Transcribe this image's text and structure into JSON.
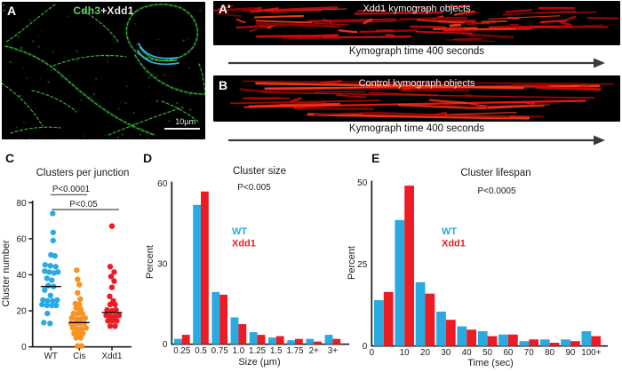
{
  "panels": {
    "a": {
      "label": "A",
      "title_green": "Cdh3",
      "title_rest": "+Xdd1",
      "scale_text": "10µm"
    },
    "a_prime": {
      "label": "A'",
      "title": "Xdd1 kymograph objects",
      "caption": "Kymograph time 400 seconds"
    },
    "b": {
      "label": "B",
      "title": "Control kymograph objects",
      "caption": "Kymograph time 400 seconds"
    }
  },
  "colors": {
    "wt_blue": "#29abe2",
    "cis_orange": "#f7941e",
    "xdd1_red": "#ed1c24",
    "micrograph_green": "#3cc43c",
    "highlight_cyan": "#2fb3ea",
    "kymograph_red": "#e01010",
    "arrow_gray": "#3a3a3a"
  },
  "chart_data": [
    {
      "panel_label": "C",
      "type": "scatter",
      "title": "Clusters per junction",
      "ylabel": "Cluster number",
      "ylim": [
        0,
        80
      ],
      "yticks": [
        0,
        20,
        40,
        60,
        80
      ],
      "categories": [
        "WT",
        "Cis",
        "Xdd1"
      ],
      "significance": [
        {
          "text": "P<0.0001",
          "pair": [
            "WT",
            "Cis"
          ]
        },
        {
          "text": "P<0.05",
          "pair": [
            "WT",
            "Xdd1"
          ]
        }
      ],
      "medians": [
        33.5,
        13.5,
        19
      ],
      "series": [
        {
          "name": "WT",
          "color": "#29abe2",
          "points": [
            [
              2,
              74
            ],
            [
              2.5,
              63.5
            ],
            [
              2.5,
              59
            ],
            [
              0,
              51
            ],
            [
              4.5,
              50.5
            ],
            [
              -6.5,
              45.5
            ],
            [
              -0.5,
              45
            ],
            [
              5.5,
              44.5
            ],
            [
              -7,
              42
            ],
            [
              -2,
              41.5
            ],
            [
              3.5,
              41
            ],
            [
              8,
              41.5
            ],
            [
              -4.5,
              38
            ],
            [
              1,
              37
            ],
            [
              -3,
              34
            ],
            [
              3,
              33.5
            ],
            [
              -7,
              31.5
            ],
            [
              -0.5,
              28.5
            ],
            [
              -9,
              26
            ],
            [
              -4,
              25.5
            ],
            [
              2,
              25.5
            ],
            [
              7,
              26
            ],
            [
              -10,
              23.5
            ],
            [
              -4.5,
              23
            ],
            [
              1,
              23
            ],
            [
              6,
              23
            ],
            [
              -4,
              18.5
            ],
            [
              -8,
              13.5
            ],
            [
              -1,
              13
            ]
          ]
        },
        {
          "name": "Cis",
          "color": "#f7941e",
          "points": [
            [
              -3,
              42.5
            ],
            [
              -2,
              37.5
            ],
            [
              0,
              34.5
            ],
            [
              -2,
              30
            ],
            [
              1,
              26.5
            ],
            [
              -4.5,
              24
            ],
            [
              0,
              23.5
            ],
            [
              -3.5,
              21.5
            ],
            [
              1.5,
              21
            ],
            [
              -6.5,
              18.5
            ],
            [
              -1.5,
              18.5
            ],
            [
              3.5,
              18.5
            ],
            [
              -8.5,
              16
            ],
            [
              -3.5,
              15.5
            ],
            [
              1.5,
              15.5
            ],
            [
              6.5,
              16
            ],
            [
              -9.5,
              13
            ],
            [
              -4.5,
              13
            ],
            [
              0.5,
              13
            ],
            [
              5.5,
              13
            ],
            [
              -7.5,
              10.5
            ],
            [
              -2.5,
              10
            ],
            [
              2.5,
              10
            ],
            [
              7.5,
              10.5
            ],
            [
              -6,
              7.5
            ],
            [
              -1,
              7.5
            ],
            [
              4,
              7.5
            ],
            [
              -3.5,
              5
            ],
            [
              1.5,
              5
            ],
            [
              -2,
              0.5
            ],
            [
              2.5,
              0.5
            ]
          ]
        },
        {
          "name": "Xdd1",
          "color": "#ed1c24",
          "points": [
            [
              0,
              67
            ],
            [
              -2,
              44.5
            ],
            [
              2.5,
              41.5
            ],
            [
              -1,
              39
            ],
            [
              2.5,
              36.5
            ],
            [
              0,
              33
            ],
            [
              -2.5,
              28
            ],
            [
              1.5,
              25.5
            ],
            [
              -2,
              23.5
            ],
            [
              3.5,
              23.5
            ],
            [
              -5.5,
              20.5
            ],
            [
              0,
              20
            ],
            [
              4.5,
              20.5
            ],
            [
              -6.5,
              17.5
            ],
            [
              -2,
              17
            ],
            [
              3,
              17
            ],
            [
              8,
              17.5
            ],
            [
              -4.5,
              14.5
            ],
            [
              0.5,
              14.5
            ],
            [
              5.5,
              14.5
            ],
            [
              -2,
              11.5
            ],
            [
              3.5,
              11.5
            ]
          ]
        }
      ]
    },
    {
      "panel_label": "D",
      "type": "bar",
      "title": "Cluster size",
      "annotation": "P<0.005",
      "xlabel": "Size (µm)",
      "ylabel": "Percent",
      "ylim": [
        0,
        60
      ],
      "yticks": [
        0,
        30,
        60
      ],
      "categories": [
        "0.25",
        "0.5",
        "0.75",
        "1.0",
        "1.25",
        "1.5",
        "1.75",
        "2+",
        "3+"
      ],
      "series": [
        {
          "name": "WT",
          "color": "#29abe2",
          "values": [
            2,
            52,
            19.5,
            10,
            4.5,
            2.5,
            1.5,
            2,
            3.5
          ]
        },
        {
          "name": "Xdd1",
          "color": "#ed1c24",
          "values": [
            3.5,
            57,
            18.5,
            7.5,
            3.5,
            3,
            2,
            1,
            2
          ]
        }
      ],
      "legend_position": "inside-top-left"
    },
    {
      "panel_label": "E",
      "type": "bar",
      "title": "Cluster lifespan",
      "annotation": "P<0.0005",
      "xlabel": "Time (sec)",
      "ylabel": "Percent",
      "ylim": [
        0,
        50
      ],
      "yticks": [
        0,
        25,
        50
      ],
      "categories": [
        "0",
        "10",
        "20",
        "30",
        "40",
        "50",
        "60",
        "70",
        "80",
        "90",
        "100+"
      ],
      "series": [
        {
          "name": "WT",
          "color": "#29abe2",
          "values": [
            14,
            38.5,
            19.5,
            10.5,
            6,
            4.5,
            3.5,
            1.5,
            2,
            2,
            4.5
          ]
        },
        {
          "name": "Xdd1",
          "color": "#ed1c24",
          "values": [
            16.5,
            49,
            16,
            8,
            5,
            3,
            3.5,
            2,
            1,
            1.5,
            3
          ]
        }
      ],
      "legend_position": "inside-top-left"
    }
  ]
}
